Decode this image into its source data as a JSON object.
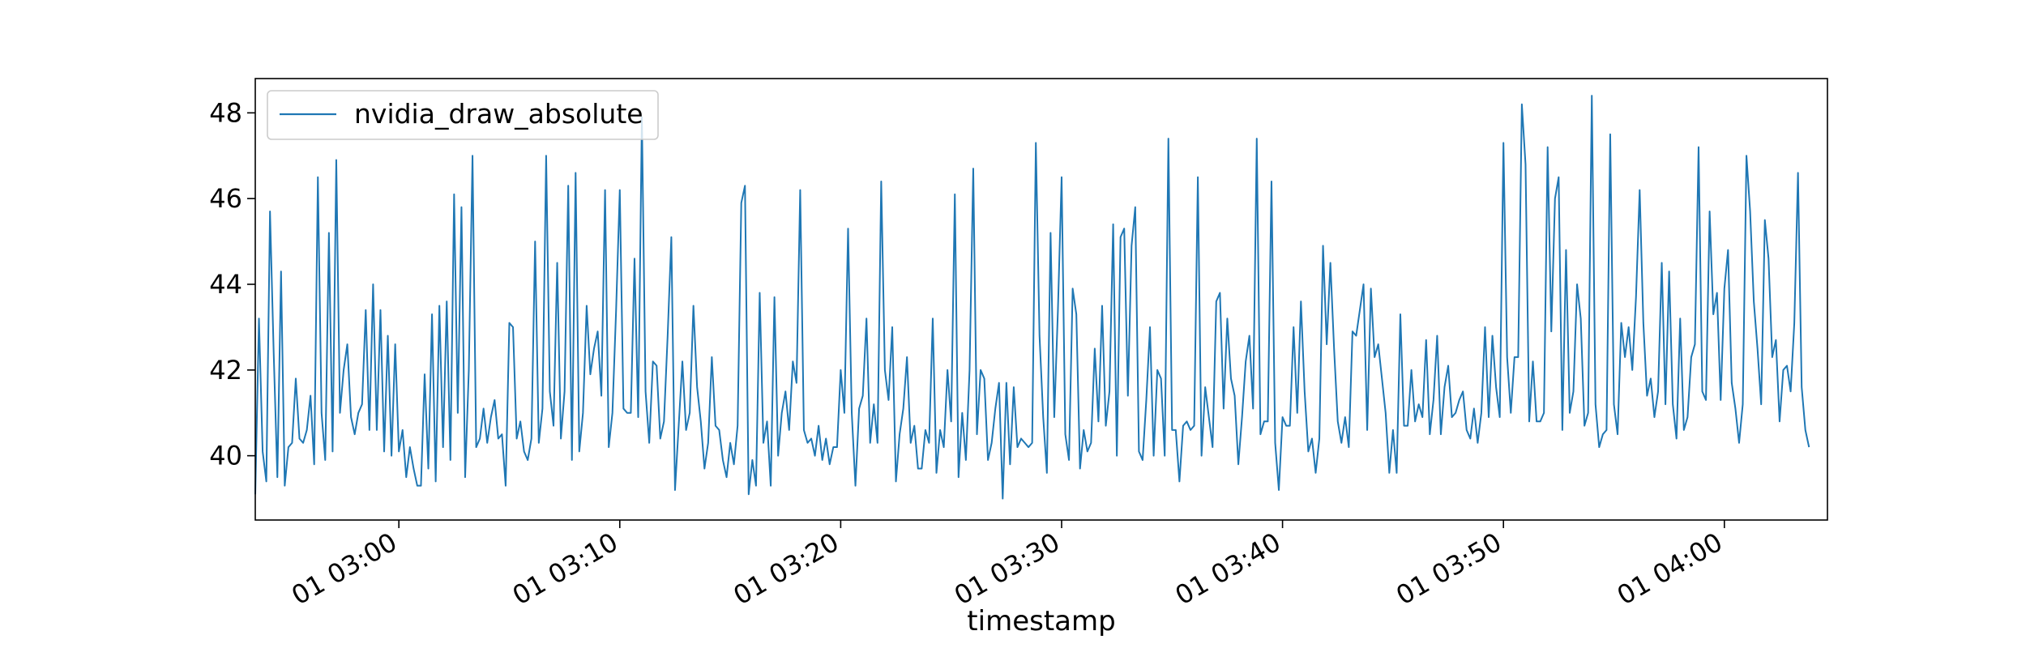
{
  "chart_data": {
    "type": "line",
    "xlabel": "timestamp",
    "ylabel": "",
    "x_tick_labels": [
      "01 03:00",
      "01 03:10",
      "01 03:20",
      "01 03:30",
      "01 03:40",
      "01 03:50",
      "01 04:00"
    ],
    "x_tick_times": [
      "03:00",
      "03:10",
      "03:20",
      "03:30",
      "03:40",
      "03:50",
      "04:00"
    ],
    "xlim": [
      "02:53:30",
      "04:04:40"
    ],
    "y_tick_labels": [
      "40",
      "42",
      "44",
      "46",
      "48"
    ],
    "ylim": [
      38.5,
      48.8
    ],
    "grid": false,
    "legend": {
      "position": "top-left",
      "entries": [
        "nvidia_draw_absolute"
      ]
    },
    "colors": {
      "series": "#1f77b4"
    },
    "series": [
      {
        "name": "nvidia_draw_absolute",
        "x_start": "02:53:30",
        "x_step_seconds": 10,
        "values": [
          39.1,
          43.2,
          40.1,
          39.4,
          45.7,
          42.4,
          39.5,
          44.3,
          39.3,
          40.2,
          40.3,
          41.8,
          40.4,
          40.3,
          40.6,
          41.4,
          39.8,
          46.5,
          41.0,
          39.9,
          45.2,
          40.1,
          46.9,
          41.0,
          42.0,
          42.6,
          40.9,
          40.5,
          41.0,
          41.2,
          43.4,
          40.6,
          44.0,
          40.6,
          43.4,
          40.1,
          42.8,
          40.0,
          42.6,
          40.1,
          40.6,
          39.5,
          40.2,
          39.7,
          39.3,
          39.3,
          41.9,
          39.7,
          43.3,
          39.4,
          43.5,
          40.2,
          43.6,
          39.9,
          46.1,
          41.0,
          45.8,
          39.5,
          42.0,
          47.0,
          40.2,
          40.4,
          41.1,
          40.3,
          40.9,
          41.3,
          40.4,
          40.5,
          39.3,
          43.1,
          43.0,
          40.4,
          40.8,
          40.1,
          39.9,
          40.4,
          45.0,
          40.3,
          41.1,
          47.0,
          41.5,
          40.7,
          44.5,
          40.4,
          41.5,
          46.3,
          39.9,
          46.6,
          40.1,
          41.0,
          43.5,
          41.9,
          42.5,
          42.9,
          41.4,
          46.2,
          40.2,
          41.0,
          43.4,
          46.2,
          41.1,
          41.0,
          41.0,
          44.6,
          40.9,
          47.9,
          41.5,
          40.3,
          42.2,
          42.1,
          40.4,
          40.8,
          42.8,
          45.1,
          39.2,
          40.7,
          42.2,
          40.6,
          41.0,
          43.5,
          41.6,
          40.8,
          39.7,
          40.3,
          42.3,
          40.7,
          40.6,
          39.9,
          39.5,
          40.3,
          39.8,
          40.7,
          45.9,
          46.3,
          39.1,
          39.9,
          39.3,
          43.8,
          40.3,
          40.8,
          39.3,
          43.7,
          40.0,
          41.0,
          41.5,
          40.6,
          42.2,
          41.7,
          46.2,
          40.6,
          40.3,
          40.4,
          40.0,
          40.7,
          39.9,
          40.4,
          39.8,
          40.2,
          40.2,
          42.0,
          41.0,
          45.3,
          41.0,
          39.3,
          41.1,
          41.4,
          43.2,
          40.3,
          41.2,
          40.3,
          46.4,
          42.0,
          41.3,
          43.0,
          39.4,
          40.5,
          41.1,
          42.3,
          40.3,
          40.7,
          39.7,
          39.7,
          40.6,
          40.3,
          43.2,
          39.6,
          40.6,
          40.2,
          42.0,
          40.8,
          46.1,
          39.5,
          41.0,
          39.9,
          42.0,
          46.7,
          40.5,
          42.0,
          41.8,
          39.9,
          40.3,
          41.1,
          41.7,
          39.0,
          41.7,
          39.8,
          41.6,
          40.2,
          40.4,
          40.3,
          40.2,
          40.3,
          47.3,
          42.8,
          40.9,
          39.6,
          45.2,
          40.9,
          43.4,
          46.5,
          40.5,
          39.9,
          43.9,
          43.3,
          39.7,
          40.6,
          40.1,
          40.3,
          42.5,
          40.8,
          43.5,
          40.7,
          41.5,
          45.4,
          40.0,
          45.1,
          45.3,
          41.4,
          44.9,
          45.8,
          40.1,
          39.9,
          41.3,
          43.0,
          40.0,
          42.0,
          41.8,
          40.0,
          47.4,
          40.6,
          40.6,
          39.4,
          40.7,
          40.8,
          40.6,
          40.7,
          46.5,
          40.0,
          41.6,
          40.9,
          40.2,
          43.6,
          43.8,
          41.1,
          43.2,
          41.8,
          41.4,
          39.8,
          40.9,
          42.2,
          42.8,
          41.1,
          47.4,
          40.5,
          40.8,
          40.8,
          46.4,
          40.3,
          39.2,
          40.9,
          40.7,
          40.7,
          43.0,
          41.0,
          43.6,
          41.5,
          40.1,
          40.4,
          39.6,
          40.4,
          44.9,
          42.6,
          44.5,
          42.5,
          40.8,
          40.3,
          40.9,
          40.2,
          42.9,
          42.8,
          43.4,
          44.0,
          40.6,
          43.9,
          42.3,
          42.6,
          41.8,
          41.0,
          39.6,
          40.6,
          39.6,
          43.3,
          40.7,
          40.7,
          42.0,
          40.8,
          41.2,
          40.9,
          42.7,
          40.5,
          41.3,
          42.8,
          40.5,
          41.6,
          42.1,
          40.9,
          41.0,
          41.3,
          41.5,
          40.6,
          40.4,
          41.1,
          40.3,
          41.0,
          43.0,
          40.9,
          42.8,
          41.6,
          40.9,
          47.3,
          42.3,
          41.0,
          42.3,
          42.3,
          48.2,
          46.8,
          40.8,
          42.2,
          40.8,
          40.8,
          41.0,
          47.2,
          42.9,
          46.0,
          46.5,
          40.6,
          44.8,
          41.0,
          41.5,
          44.0,
          43.2,
          40.7,
          41.0,
          48.4,
          41.2,
          40.2,
          40.5,
          40.6,
          47.5,
          41.2,
          40.5,
          43.1,
          42.3,
          43.0,
          42.0,
          43.7,
          46.2,
          43.1,
          41.4,
          41.8,
          40.9,
          41.5,
          44.5,
          41.2,
          44.3,
          41.2,
          40.4,
          43.2,
          40.6,
          40.9,
          42.3,
          42.6,
          47.2,
          41.5,
          41.3,
          45.7,
          43.3,
          43.8,
          41.3,
          43.9,
          44.8,
          41.7,
          41.1,
          40.3,
          41.2,
          47.0,
          45.7,
          43.6,
          42.5,
          41.2,
          45.5,
          44.6,
          42.3,
          42.7,
          40.8,
          42.0,
          42.1,
          41.5,
          43.1,
          46.6,
          41.6,
          40.6,
          40.2
        ]
      }
    ]
  }
}
